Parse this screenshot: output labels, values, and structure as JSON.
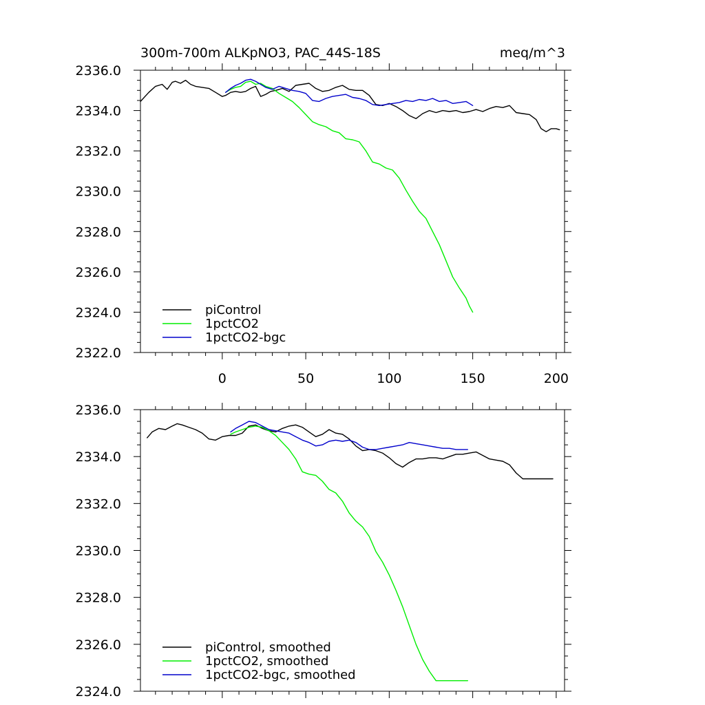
{
  "colors": {
    "piControl": "#000000",
    "onepct": "#00ee00",
    "bgc": "#0000cc"
  },
  "chart_data": [
    {
      "type": "line",
      "title": "300m-700m ALKpNO3, PAC_44S-18S",
      "units": "meq/m^3",
      "xlabel": "",
      "ylabel": "",
      "xlim": [
        -49,
        205
      ],
      "ylim": [
        2322.0,
        2336.0
      ],
      "x_ticks": [
        0,
        50,
        100,
        150,
        200
      ],
      "x_tick_labels": [
        "0",
        "50",
        "100",
        "150",
        "200"
      ],
      "y_ticks": [
        2322.0,
        2324.0,
        2326.0,
        2328.0,
        2330.0,
        2332.0,
        2334.0,
        2336.0
      ],
      "y_tick_labels": [
        "2322.0",
        "2324.0",
        "2326.0",
        "2328.0",
        "2330.0",
        "2332.0",
        "2334.0",
        "2336.0"
      ],
      "legend_position": "bottom-left",
      "series": [
        {
          "name": "piControl",
          "color_key": "piControl",
          "x": [
            -49,
            -44,
            -40,
            -36,
            -33,
            -30,
            -28,
            -25,
            -22,
            -19,
            -16,
            -12,
            -8,
            -4,
            0,
            2,
            5,
            8,
            11,
            14,
            17,
            20,
            23,
            26,
            29,
            32,
            36,
            40,
            44,
            48,
            52,
            56,
            60,
            64,
            68,
            72,
            76,
            80,
            84,
            88,
            92,
            96,
            100,
            104,
            108,
            112,
            116,
            120,
            124,
            128,
            132,
            136,
            140,
            144,
            148,
            152,
            156,
            160,
            164,
            168,
            172,
            176,
            180,
            184,
            188,
            191,
            194,
            197,
            200,
            202
          ],
          "y": [
            2334.45,
            2334.9,
            2335.2,
            2335.3,
            2335.05,
            2335.4,
            2335.45,
            2335.35,
            2335.5,
            2335.3,
            2335.2,
            2335.15,
            2335.1,
            2334.9,
            2334.7,
            2334.75,
            2334.9,
            2334.95,
            2334.9,
            2334.95,
            2335.1,
            2335.2,
            2334.7,
            2334.8,
            2334.95,
            2335.0,
            2335.1,
            2334.95,
            2335.25,
            2335.3,
            2335.35,
            2335.1,
            2334.95,
            2335.0,
            2335.15,
            2335.25,
            2335.05,
            2335.0,
            2335.0,
            2334.75,
            2334.3,
            2334.25,
            2334.35,
            2334.2,
            2334.0,
            2333.75,
            2333.6,
            2333.85,
            2334.0,
            2333.9,
            2334.0,
            2333.95,
            2334.0,
            2333.9,
            2333.95,
            2334.05,
            2333.95,
            2334.1,
            2334.2,
            2334.15,
            2334.25,
            2333.9,
            2333.85,
            2333.8,
            2333.55,
            2333.1,
            2332.95,
            2333.1,
            2333.1,
            2333.05
          ]
        },
        {
          "name": "1pctCO2",
          "color_key": "onepct",
          "x": [
            2,
            5,
            8,
            11,
            14,
            17,
            20,
            23,
            26,
            30,
            34,
            38,
            42,
            46,
            50,
            54,
            58,
            62,
            66,
            70,
            74,
            78,
            82,
            86,
            90,
            94,
            98,
            102,
            106,
            110,
            114,
            118,
            122,
            126,
            130,
            134,
            138,
            142,
            146,
            148,
            150
          ],
          "y": [
            2334.9,
            2335.05,
            2335.15,
            2335.2,
            2335.4,
            2335.45,
            2335.3,
            2335.35,
            2335.2,
            2335.1,
            2334.85,
            2334.65,
            2334.45,
            2334.15,
            2333.8,
            2333.45,
            2333.3,
            2333.2,
            2333.0,
            2332.9,
            2332.6,
            2332.55,
            2332.45,
            2332.0,
            2331.45,
            2331.35,
            2331.15,
            2331.05,
            2330.65,
            2330.05,
            2329.5,
            2329.0,
            2328.65,
            2328.0,
            2327.35,
            2326.55,
            2325.75,
            2325.2,
            2324.7,
            2324.3,
            2324.0
          ]
        },
        {
          "name": "1pctCO2-bgc",
          "color_key": "bgc",
          "x": [
            2,
            5,
            8,
            11,
            14,
            17,
            20,
            23,
            26,
            30,
            34,
            38,
            42,
            46,
            50,
            54,
            58,
            62,
            66,
            70,
            74,
            78,
            82,
            86,
            90,
            94,
            98,
            102,
            106,
            110,
            114,
            118,
            122,
            126,
            130,
            134,
            138,
            142,
            146,
            148,
            150
          ],
          "y": [
            2334.9,
            2335.1,
            2335.25,
            2335.35,
            2335.5,
            2335.55,
            2335.45,
            2335.3,
            2335.15,
            2335.05,
            2335.2,
            2335.1,
            2335.0,
            2334.95,
            2334.85,
            2334.5,
            2334.45,
            2334.6,
            2334.7,
            2334.75,
            2334.8,
            2334.65,
            2334.6,
            2334.5,
            2334.3,
            2334.25,
            2334.3,
            2334.35,
            2334.4,
            2334.5,
            2334.45,
            2334.55,
            2334.5,
            2334.6,
            2334.45,
            2334.5,
            2334.35,
            2334.4,
            2334.45,
            2334.35,
            2334.25
          ]
        }
      ]
    },
    {
      "type": "line",
      "title": "",
      "units": "",
      "xlabel": "",
      "ylabel": "",
      "xlim": [
        -49,
        205
      ],
      "ylim": [
        2324.0,
        2336.0
      ],
      "x_ticks": [
        0,
        50,
        100,
        150,
        200
      ],
      "x_tick_labels": [],
      "y_ticks": [
        2324.0,
        2326.0,
        2328.0,
        2330.0,
        2332.0,
        2334.0,
        2336.0
      ],
      "y_tick_labels": [
        "2324.0",
        "2326.0",
        "2328.0",
        "2330.0",
        "2332.0",
        "2334.0",
        "2336.0"
      ],
      "legend_position": "bottom-left",
      "series": [
        {
          "name": "piControl, smoothed",
          "color_key": "piControl",
          "x": [
            -45,
            -42,
            -38,
            -34,
            -30,
            -27,
            -24,
            -20,
            -16,
            -12,
            -8,
            -4,
            0,
            4,
            8,
            12,
            16,
            20,
            24,
            28,
            32,
            36,
            40,
            44,
            48,
            52,
            56,
            60,
            64,
            68,
            72,
            76,
            80,
            84,
            88,
            92,
            96,
            100,
            104,
            108,
            112,
            116,
            120,
            124,
            128,
            132,
            136,
            140,
            144,
            148,
            152,
            156,
            160,
            164,
            168,
            172,
            176,
            180,
            184,
            188,
            192,
            195,
            198
          ],
          "y": [
            2334.8,
            2335.05,
            2335.2,
            2335.15,
            2335.3,
            2335.4,
            2335.35,
            2335.25,
            2335.15,
            2335.0,
            2334.75,
            2334.7,
            2334.85,
            2334.9,
            2334.9,
            2335.0,
            2335.3,
            2335.35,
            2335.2,
            2335.1,
            2335.05,
            2335.2,
            2335.3,
            2335.35,
            2335.25,
            2335.05,
            2334.85,
            2334.95,
            2335.15,
            2335.0,
            2334.95,
            2334.75,
            2334.45,
            2334.25,
            2334.3,
            2334.25,
            2334.15,
            2333.95,
            2333.7,
            2333.55,
            2333.75,
            2333.9,
            2333.9,
            2333.95,
            2333.95,
            2333.9,
            2334.0,
            2334.1,
            2334.1,
            2334.15,
            2334.2,
            2334.05,
            2333.9,
            2333.85,
            2333.8,
            2333.65,
            2333.3,
            2333.05,
            2333.05,
            2333.05,
            2333.05,
            2333.05,
            2333.05
          ]
        },
        {
          "name": "1pctCO2, smoothed",
          "color_key": "onepct",
          "x": [
            5,
            8,
            12,
            16,
            20,
            24,
            28,
            32,
            36,
            40,
            44,
            48,
            52,
            56,
            60,
            64,
            68,
            72,
            76,
            80,
            84,
            88,
            92,
            96,
            100,
            104,
            108,
            112,
            116,
            120,
            124,
            128,
            132,
            136,
            140,
            144,
            147
          ],
          "y": [
            2334.95,
            2335.05,
            2335.15,
            2335.25,
            2335.3,
            2335.25,
            2335.1,
            2334.9,
            2334.6,
            2334.3,
            2333.9,
            2333.35,
            2333.25,
            2333.2,
            2332.95,
            2332.6,
            2332.45,
            2332.1,
            2331.6,
            2331.25,
            2331.0,
            2330.6,
            2329.95,
            2329.5,
            2328.95,
            2328.3,
            2327.6,
            2326.8,
            2326.0,
            2325.35,
            2324.85,
            2324.45,
            2324.45,
            2324.45,
            2324.45,
            2324.45,
            2324.45
          ]
        },
        {
          "name": "1pctCO2-bgc, smoothed",
          "color_key": "bgc",
          "x": [
            5,
            8,
            12,
            16,
            20,
            24,
            28,
            32,
            36,
            40,
            44,
            48,
            52,
            56,
            60,
            64,
            68,
            72,
            76,
            80,
            84,
            88,
            92,
            96,
            100,
            104,
            108,
            112,
            116,
            120,
            124,
            128,
            132,
            136,
            140,
            144,
            147
          ],
          "y": [
            2335.05,
            2335.2,
            2335.35,
            2335.5,
            2335.45,
            2335.3,
            2335.15,
            2335.1,
            2335.05,
            2335.0,
            2334.85,
            2334.7,
            2334.6,
            2334.45,
            2334.5,
            2334.65,
            2334.7,
            2334.65,
            2334.7,
            2334.6,
            2334.4,
            2334.3,
            2334.3,
            2334.35,
            2334.4,
            2334.45,
            2334.5,
            2334.6,
            2334.55,
            2334.5,
            2334.45,
            2334.4,
            2334.35,
            2334.35,
            2334.3,
            2334.3,
            2334.3
          ]
        }
      ]
    }
  ]
}
